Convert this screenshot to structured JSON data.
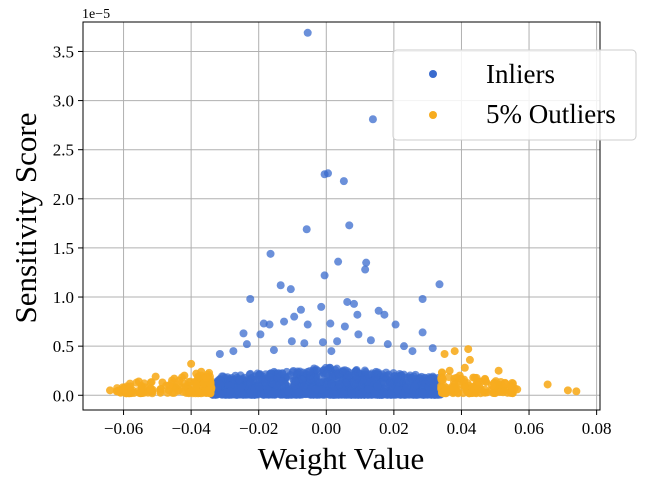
{
  "chart_data": {
    "type": "scatter",
    "title": "",
    "xlabel": "Weight Value",
    "ylabel": "Sensitivity Score",
    "y_scale_label": "1e−5",
    "xlim": [
      -0.072,
      0.081
    ],
    "ylim": [
      -0.15,
      3.8
    ],
    "x_ticks": [
      -0.06,
      -0.04,
      -0.02,
      0.0,
      0.02,
      0.04,
      0.06,
      0.08
    ],
    "x_tick_labels": [
      "−0.06",
      "−0.04",
      "−0.02",
      "0.00",
      "0.02",
      "0.04",
      "0.06",
      "0.08"
    ],
    "y_ticks": [
      0.0,
      0.5,
      1.0,
      1.5,
      2.0,
      2.5,
      3.0,
      3.5
    ],
    "y_tick_labels": [
      "0.0",
      "0.5",
      "1.0",
      "1.5",
      "2.0",
      "2.5",
      "3.0",
      "3.5"
    ],
    "grid": true,
    "legend_position": "top-right",
    "colors": {
      "inliers": "#3a6bce",
      "outliers": "#f7ac1f"
    },
    "series": [
      {
        "name": "Inliers",
        "color": "#3a6bce",
        "points": [
          [
            -0.0055,
            3.69
          ],
          [
            0.0138,
            2.81
          ],
          [
            -0.0005,
            2.25
          ],
          [
            0.0005,
            2.26
          ],
          [
            0.0052,
            2.18
          ],
          [
            0.0068,
            1.73
          ],
          [
            -0.0058,
            1.69
          ],
          [
            -0.0165,
            1.44
          ],
          [
            0.0118,
            1.35
          ],
          [
            0.0035,
            1.36
          ],
          [
            0.0115,
            1.28
          ],
          [
            -0.0005,
            1.22
          ],
          [
            -0.0135,
            1.12
          ],
          [
            -0.0105,
            1.08
          ],
          [
            0.0335,
            1.13
          ],
          [
            -0.0225,
            0.98
          ],
          [
            0.0285,
            0.98
          ],
          [
            0.0062,
            0.95
          ],
          [
            0.0082,
            0.93
          ],
          [
            -0.0015,
            0.9
          ],
          [
            -0.0075,
            0.87
          ],
          [
            0.0155,
            0.86
          ],
          [
            0.0172,
            0.82
          ],
          [
            0.0092,
            0.82
          ],
          [
            -0.0095,
            0.8
          ],
          [
            -0.0185,
            0.73
          ],
          [
            -0.0168,
            0.72
          ],
          [
            -0.0125,
            0.75
          ],
          [
            0.0012,
            0.73
          ],
          [
            -0.0055,
            0.72
          ],
          [
            0.0055,
            0.7
          ],
          [
            0.0205,
            0.72
          ],
          [
            0.0095,
            0.62
          ],
          [
            -0.0195,
            0.62
          ],
          [
            -0.0245,
            0.63
          ],
          [
            0.0285,
            0.64
          ],
          [
            -0.0102,
            0.55
          ],
          [
            -0.0065,
            0.53
          ],
          [
            -0.001,
            0.54
          ],
          [
            0.0032,
            0.55
          ],
          [
            0.0132,
            0.56
          ],
          [
            0.0182,
            0.52
          ],
          [
            0.023,
            0.5
          ],
          [
            -0.0235,
            0.52
          ],
          [
            -0.0275,
            0.45
          ],
          [
            0.0315,
            0.48
          ],
          [
            -0.0315,
            0.42
          ],
          [
            0.0255,
            0.45
          ],
          [
            -0.0155,
            0.46
          ],
          [
            0.0015,
            0.45
          ]
        ]
      },
      {
        "name": "5% Outliers",
        "color": "#f7ac1f",
        "points": [
          [
            -0.064,
            0.05
          ],
          [
            -0.062,
            0.04
          ],
          [
            -0.06,
            0.06
          ],
          [
            -0.058,
            0.09
          ],
          [
            -0.0555,
            0.14
          ],
          [
            -0.052,
            0.07
          ],
          [
            -0.0505,
            0.19
          ],
          [
            -0.0485,
            0.13
          ],
          [
            -0.0465,
            0.1
          ],
          [
            -0.045,
            0.17
          ],
          [
            -0.0435,
            0.15
          ],
          [
            -0.042,
            0.2
          ],
          [
            -0.04,
            0.32
          ],
          [
            -0.0385,
            0.22
          ],
          [
            -0.037,
            0.24
          ],
          [
            -0.0355,
            0.18
          ],
          [
            0.0345,
            0.16
          ],
          [
            0.035,
            0.42
          ],
          [
            0.0365,
            0.25
          ],
          [
            0.038,
            0.45
          ],
          [
            0.0395,
            0.2
          ],
          [
            0.041,
            0.28
          ],
          [
            0.042,
            0.47
          ],
          [
            0.0425,
            0.36
          ],
          [
            0.0435,
            0.18
          ],
          [
            0.045,
            0.14
          ],
          [
            0.047,
            0.16
          ],
          [
            0.049,
            0.1
          ],
          [
            0.051,
            0.25
          ],
          [
            0.053,
            0.12
          ],
          [
            0.055,
            0.08
          ],
          [
            0.0565,
            0.06
          ],
          [
            0.0655,
            0.11
          ],
          [
            0.0715,
            0.05
          ],
          [
            0.074,
            0.04
          ]
        ]
      }
    ]
  }
}
